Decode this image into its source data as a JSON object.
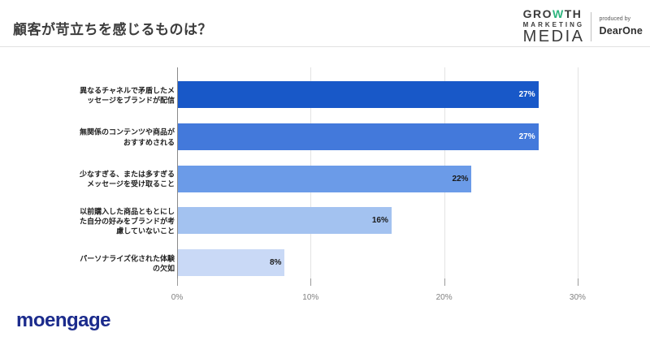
{
  "header": {
    "title": "顧客が苛立ちを感じるものは？",
    "logo": {
      "growth_pre": "GRO",
      "growth_w": "W",
      "growth_post": "TH",
      "marketing": "MARKETING",
      "media": "MEDIA",
      "produced_by": "produced by",
      "producer": "DearOne",
      "accent_green": "#2cb57e"
    }
  },
  "chart_data": {
    "type": "bar",
    "orientation": "horizontal",
    "title": "顧客が苛立ちを感じるものは？",
    "categories": [
      "異なるチャネルで矛盾したメ\nッセージをブランドが配信",
      "無関係のコンテンツや商品が\nおすすめされる",
      "少なすぎる、または多すぎる\nメッセージを受け取ること",
      "以前購入した商品ともとにし\nた自分の好みをブランドが考\n慮していないこと",
      "パーソナライズ化された体験\nの欠如"
    ],
    "values": [
      27,
      27,
      22,
      16,
      8
    ],
    "value_labels": [
      "27%",
      "27%",
      "22%",
      "16%",
      "8%"
    ],
    "x_ticks": [
      "0%",
      "10%",
      "20%",
      "30%"
    ],
    "xlim": [
      0,
      30
    ],
    "grid": true,
    "legend": false,
    "bar_colors": [
      "#1858c8",
      "#4379db",
      "#6b9be8",
      "#a3c2f0",
      "#c9d9f6"
    ],
    "value_label_colors": [
      "#ffffff",
      "#ffffff",
      "#1a1a1a",
      "#1a1a1a",
      "#1a1a1a"
    ]
  },
  "footer": {
    "brand": "moengage",
    "brand_color": "#1b2b8c"
  }
}
